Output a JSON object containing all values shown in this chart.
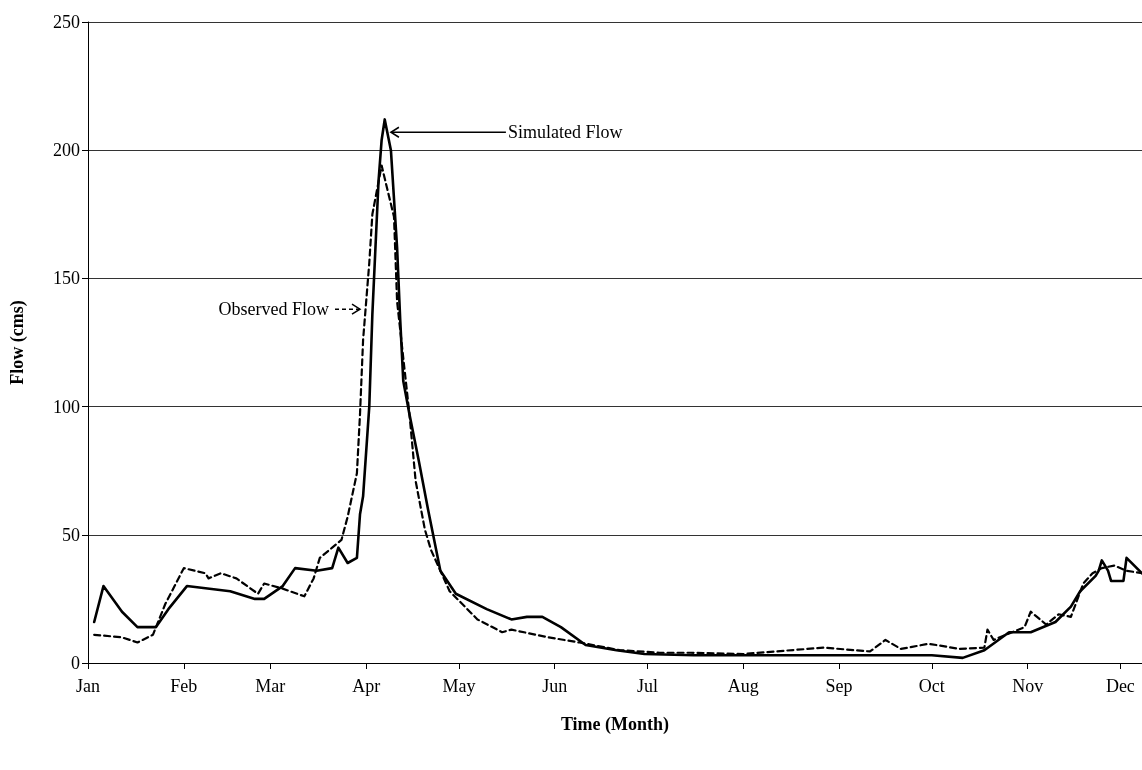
{
  "chart_data": {
    "type": "line",
    "xlabel": "Time (Month)",
    "ylabel": "Flow (cms)",
    "xlim": [
      "--01-01",
      "--12-08"
    ],
    "xticks": [
      {
        "value": "--01-01",
        "label": "Jan"
      },
      {
        "value": "--02-01",
        "label": "Feb"
      },
      {
        "value": "--03-01",
        "label": "Mar"
      },
      {
        "value": "--04-01",
        "label": "Apr"
      },
      {
        "value": "--05-01",
        "label": "May"
      },
      {
        "value": "--06-01",
        "label": "Jun"
      },
      {
        "value": "--07-01",
        "label": "Jul"
      },
      {
        "value": "--08-01",
        "label": "Aug"
      },
      {
        "value": "--09-01",
        "label": "Sep"
      },
      {
        "value": "--10-01",
        "label": "Oct"
      },
      {
        "value": "--11-01",
        "label": "Nov"
      },
      {
        "value": "--12-01",
        "label": "Dec"
      }
    ],
    "ylim": [
      0,
      250
    ],
    "yticks": [
      0,
      50,
      100,
      150,
      200,
      250
    ],
    "grid": "y",
    "marker": "none",
    "series": [
      {
        "color": "#000000",
        "line_style": "solid",
        "x": [
          "--01-03",
          "--01-06",
          "--01-12",
          "--01-17",
          "--01-23",
          "--01-27",
          "--02-02",
          "--02-16",
          "--02-24",
          "--02-27",
          "--03-05",
          "--03-09",
          "--03-16",
          "--03-21",
          "--03-23",
          "--03-26",
          "--03-29",
          "--03-30",
          "--03-31",
          "--04-02",
          "--04-03",
          "--04-05",
          "--04-06",
          "--04-07",
          "--04-09",
          "--04-11",
          "--04-12",
          "--04-13",
          "--04-15",
          "--04-18",
          "--04-21",
          "--04-25",
          "--04-30",
          "--05-10",
          "--05-18",
          "--05-23",
          "--05-28",
          "--06-03",
          "--06-11",
          "--06-21",
          "--06-30",
          "--07-16",
          "--08-01",
          "--08-16",
          "--09-01",
          "--09-16",
          "--10-01",
          "--10-11",
          "--10-18",
          "--10-26",
          "--11-02",
          "--11-10",
          "--11-15",
          "--11-18",
          "--11-23",
          "--11-24",
          "--11-25",
          "--11-27",
          "--11-28",
          "--12-02",
          "--12-03",
          "--12-08"
        ],
        "values": [
          16,
          30,
          20,
          14,
          14,
          21,
          30,
          28,
          25,
          25,
          30,
          37,
          36,
          37,
          45,
          39,
          41,
          58,
          65,
          100,
          136,
          188,
          204,
          212,
          200,
          162,
          134,
          110,
          97,
          79,
          60,
          36,
          27,
          21,
          17,
          18,
          18,
          14,
          7,
          5,
          3.5,
          3,
          3,
          3,
          3,
          3,
          3,
          2,
          5,
          12,
          12,
          16,
          22,
          28,
          34,
          36,
          40,
          36,
          32,
          32,
          41,
          35
        ]
      },
      {
        "color": "#000000",
        "line_style": "dashed",
        "x": [
          "--01-03",
          "--01-12",
          "--01-17",
          "--01-22",
          "--01-26",
          "--02-01",
          "--02-08",
          "--02-09",
          "--02-13",
          "--02-18",
          "--02-25",
          "--02-27",
          "--03-05",
          "--03-12",
          "--03-15",
          "--03-17",
          "--03-21",
          "--03-24",
          "--03-26",
          "--03-29",
          "--03-30",
          "--03-31",
          "--04-02",
          "--04-03",
          "--04-06",
          "--04-10",
          "--04-11",
          "--04-15",
          "--04-17",
          "--04-20",
          "--04-22",
          "--04-28",
          "--05-07",
          "--05-15",
          "--05-18",
          "--05-30",
          "--06-09",
          "--06-22",
          "--07-05",
          "--07-15",
          "--08-01",
          "--08-27",
          "--09-11",
          "--09-16",
          "--09-21",
          "--09-30",
          "--10-10",
          "--10-18",
          "--10-19",
          "--10-21",
          "--10-31",
          "--11-02",
          "--11-07",
          "--11-11",
          "--11-15",
          "--11-19",
          "--11-22",
          "--11-25",
          "--11-29",
          "--12-03",
          "--12-08"
        ],
        "values": [
          11,
          10,
          8,
          11,
          23,
          37,
          35,
          33,
          35,
          33,
          27,
          31,
          29,
          26,
          33,
          41,
          45,
          48,
          57,
          74,
          97,
          126,
          156,
          175,
          194,
          174,
          141,
          97,
          71,
          52,
          44,
          28,
          17,
          12,
          13,
          10,
          8,
          5,
          4,
          4,
          3.5,
          6,
          4.5,
          9,
          5.5,
          7.5,
          5.5,
          6,
          13,
          9,
          14,
          20,
          15,
          19,
          18,
          31,
          35,
          37,
          38,
          36,
          35
        ]
      }
    ],
    "annotations": [
      {
        "text": "Simulated Flow",
        "x": "--04-09",
        "y": 207
      },
      {
        "text": "Observed Flow",
        "x": "--03-30",
        "y": 138
      }
    ]
  }
}
